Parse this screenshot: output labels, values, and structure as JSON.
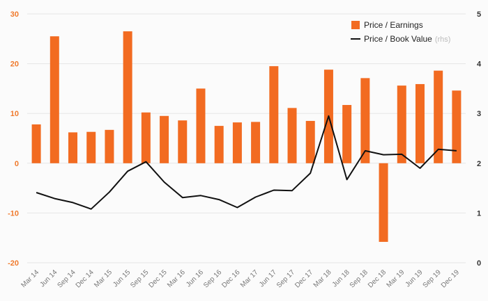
{
  "chart_data": {
    "type": "bar",
    "categories": [
      "Mar 14",
      "Jun 14",
      "Sep 14",
      "Dec 14",
      "Mar 15",
      "Jun 15",
      "Sep 15",
      "Dec 15",
      "Mar 16",
      "Jun 16",
      "Sep 16",
      "Dec 16",
      "Mar 17",
      "Jun 17",
      "Sep 17",
      "Dec 17",
      "Mar 18",
      "Jun 18",
      "Sep 18",
      "Dec 18",
      "Mar 19",
      "Jun 19",
      "Sep 19",
      "Dec 19"
    ],
    "series": [
      {
        "name": "Price / Earnings",
        "type": "bar",
        "axis": "left",
        "color": "#f26b21",
        "values": [
          7.8,
          25.5,
          6.2,
          6.3,
          6.7,
          26.5,
          10.2,
          9.5,
          8.6,
          15.0,
          7.5,
          8.2,
          8.3,
          19.5,
          11.1,
          8.5,
          18.8,
          11.7,
          17.1,
          -15.8,
          15.6,
          15.9,
          18.6,
          14.6
        ]
      },
      {
        "name": "Price / Book Value",
        "name_suffix": "(rhs)",
        "type": "line",
        "axis": "right",
        "color": "#111111",
        "values": [
          1.41,
          1.29,
          1.21,
          1.08,
          1.42,
          1.84,
          2.03,
          1.62,
          1.31,
          1.35,
          1.27,
          1.11,
          1.32,
          1.46,
          1.45,
          1.8,
          2.95,
          1.67,
          2.25,
          2.17,
          2.18,
          1.9,
          2.28,
          2.25
        ]
      }
    ],
    "y_left": {
      "min": -20,
      "max": 30,
      "ticks": [
        -20,
        -10,
        0,
        10,
        20,
        30
      ],
      "color": "#f07a2c"
    },
    "y_right": {
      "min": 0,
      "max": 5,
      "ticks": [
        0,
        1,
        2,
        3,
        4,
        5
      ]
    },
    "grid": true,
    "legend": "top-right",
    "title": "",
    "xlabel": "",
    "ylabel": ""
  }
}
